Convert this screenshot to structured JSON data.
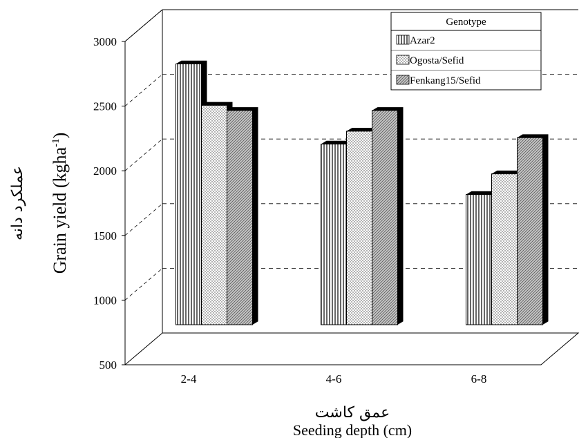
{
  "chart_data": {
    "type": "bar",
    "ylabel": "Grain yield (kgha",
    "ylabel_superscript": "-1",
    "ylabel_close": ")",
    "ylabel_fa": "عملکرد دانه",
    "xlabel": "Seeding depth (cm)",
    "xlabel_fa": "عمق کاشت",
    "ylim": [
      500,
      3000
    ],
    "yticks": [
      "500",
      "1000",
      "1500",
      "2000",
      "2500",
      "3000"
    ],
    "categories": [
      "2-4",
      "4-6",
      "6-8"
    ],
    "legend": {
      "title": "Genotype",
      "position": "top-right"
    },
    "series": [
      {
        "name": "Azar2",
        "pattern": "vertical-lines",
        "values": [
          2650,
          2030,
          1640
        ]
      },
      {
        "name": "Ogosta/Sefid",
        "pattern": "dots",
        "values": [
          2330,
          2130,
          1800
        ]
      },
      {
        "name": "Fenkang15/Sefid",
        "pattern": "diagonal-hatch",
        "values": [
          2290,
          2290,
          2080
        ]
      }
    ],
    "grid": "dashed",
    "style": "3d-box"
  }
}
